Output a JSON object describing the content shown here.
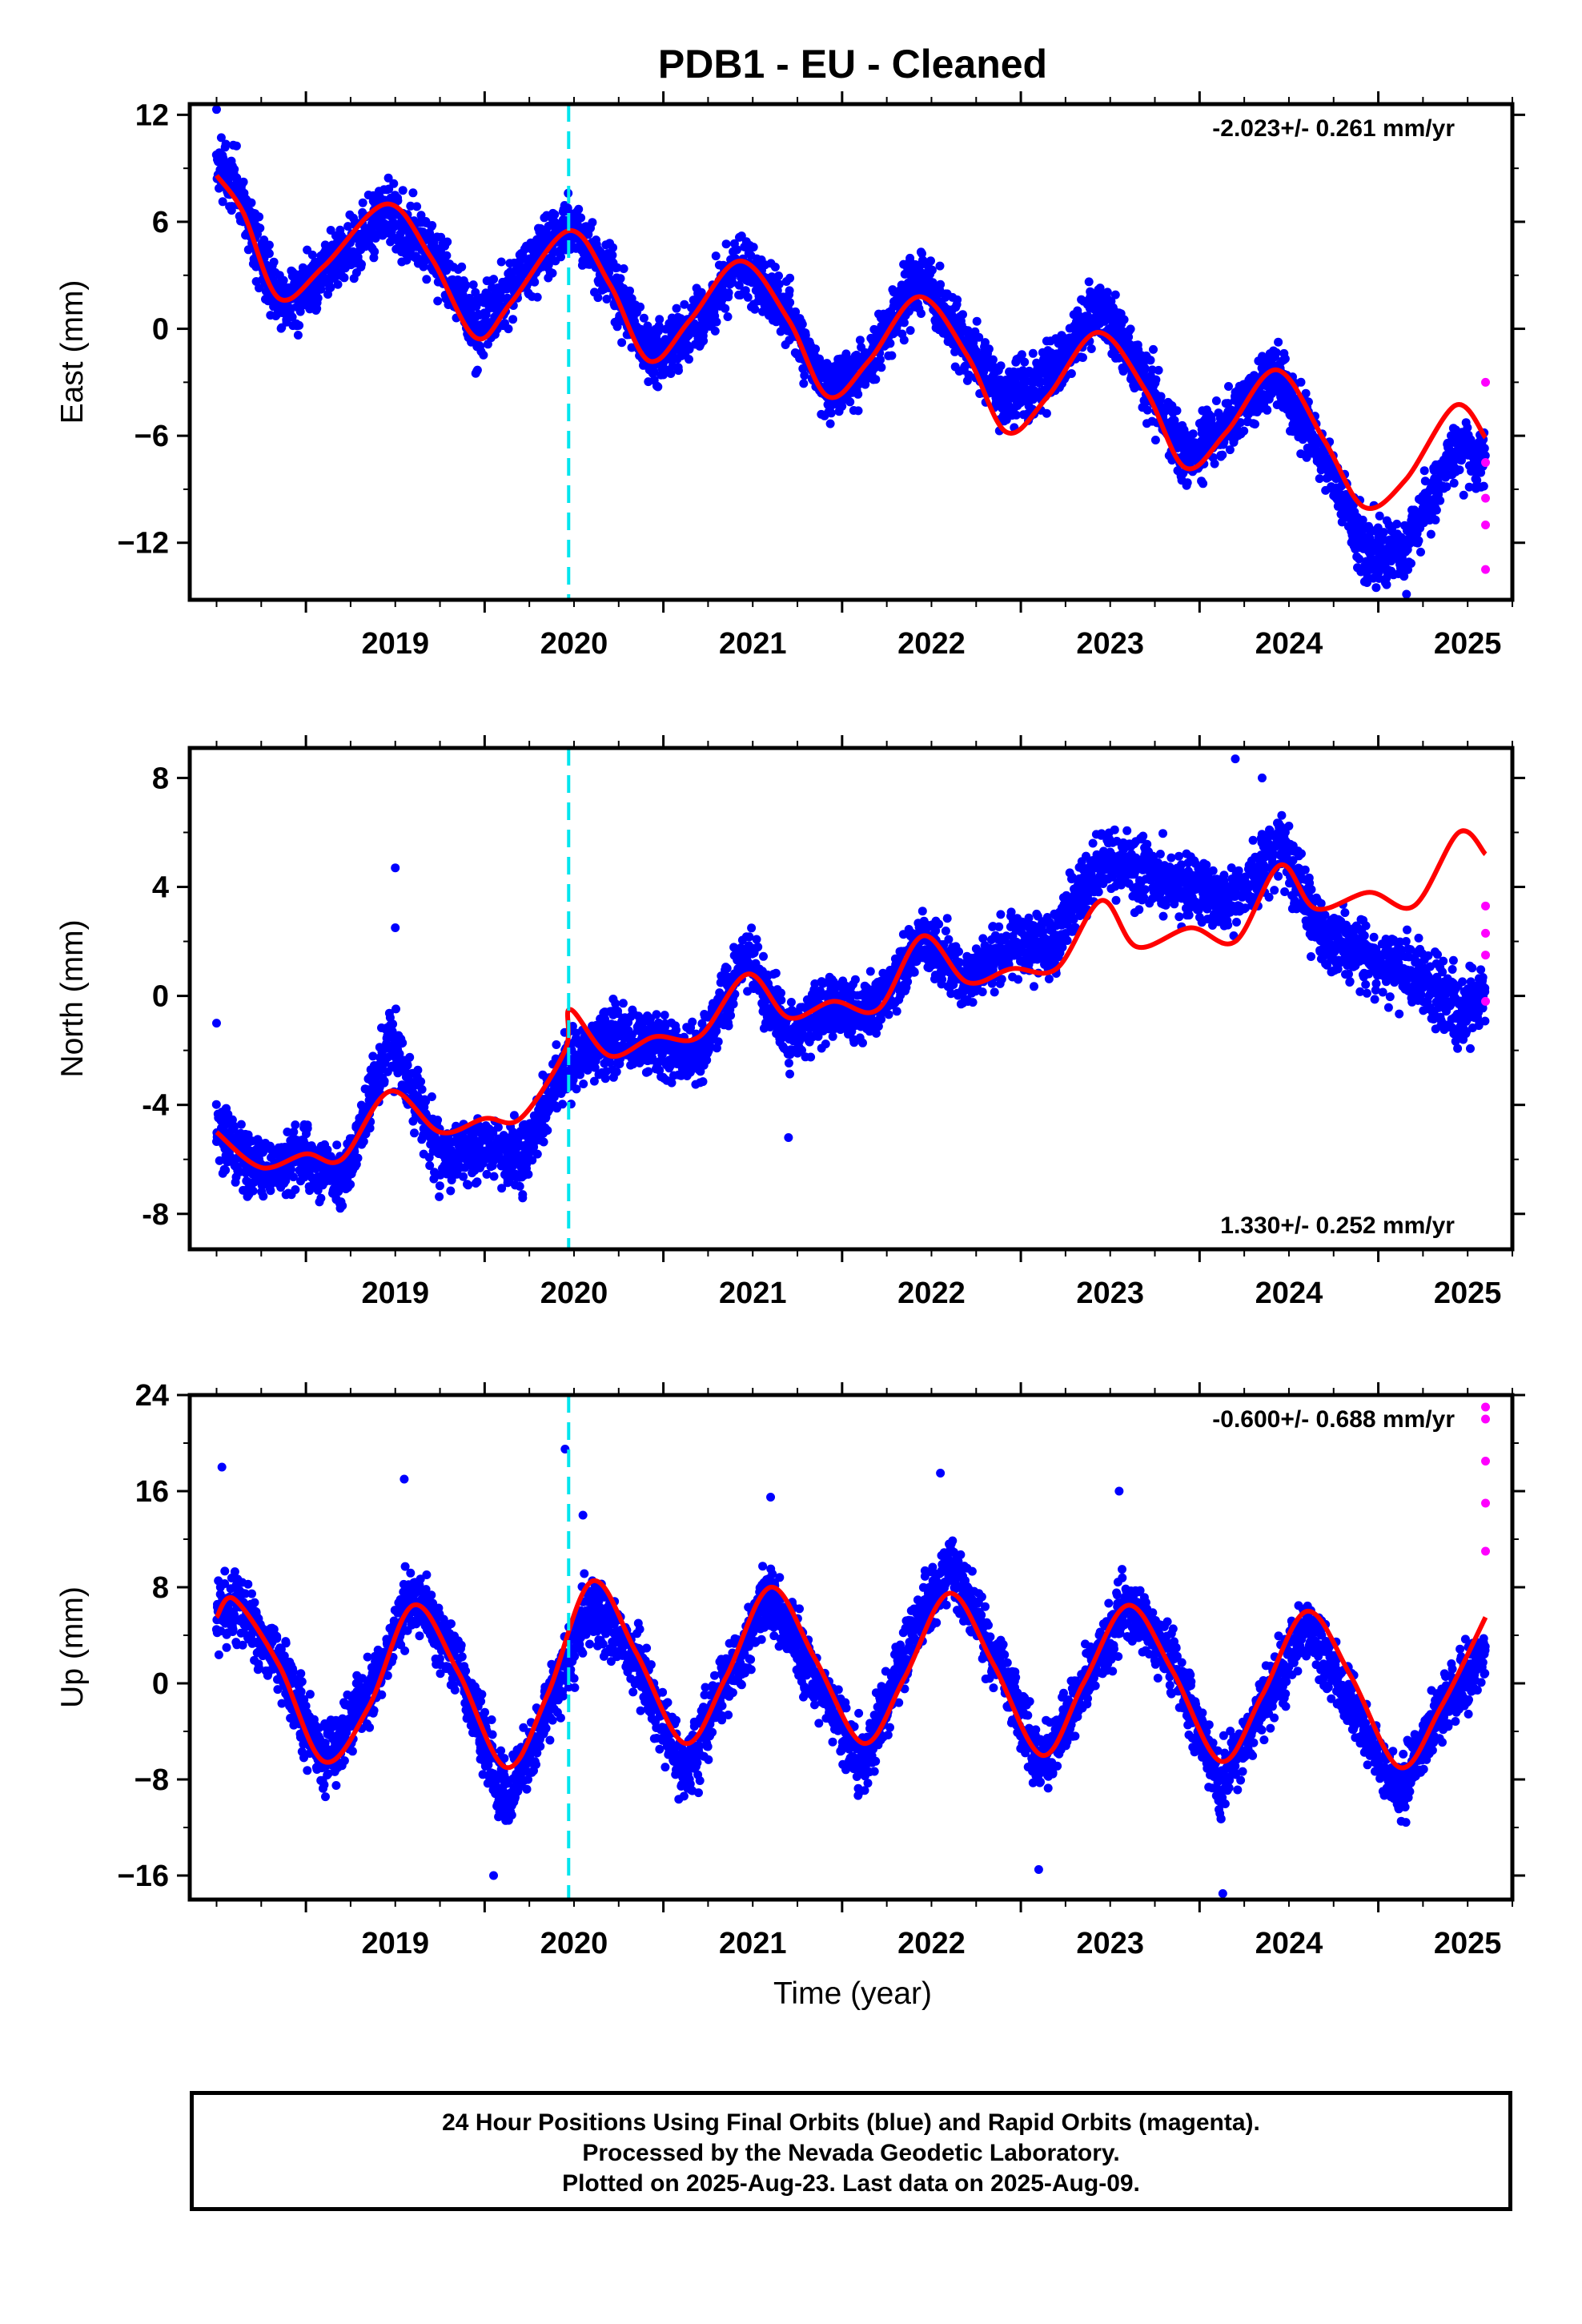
{
  "title": "PDB1  - EU - Cleaned",
  "x_axis_label": "Time (year)",
  "footer": {
    "line1": "24 Hour Positions Using Final Orbits (blue) and Rapid Orbits (magenta).",
    "line2": "Processed by the Nevada Geodetic Laboratory.",
    "line3": "Plotted on 2025-Aug-23. Last data on 2025-Aug-09."
  },
  "colors": {
    "final_orbits": "#0000ff",
    "rapid_orbits": "#ff00ff",
    "model_fit": "#ff0000",
    "event_line": "#00e5ee",
    "frame": "#000000"
  },
  "chart_data": [
    {
      "type": "scatter",
      "panel": "east",
      "ylabel": "East (mm)",
      "rate_text": "-2.023+/- 0.261 mm/yr",
      "rate_position": "top-right",
      "xlim": [
        2018.35,
        2025.75
      ],
      "ylim": [
        -15.2,
        12.6
      ],
      "yticks": [
        12,
        6,
        0,
        -6,
        -12
      ],
      "ytick_labels": [
        "12",
        "6",
        "0",
        "−6",
        "−12"
      ],
      "xticks": [
        2019,
        2020,
        2021,
        2022,
        2023,
        2024,
        2025
      ],
      "xtick_labels": [
        "2019",
        "2020",
        "2021",
        "2022",
        "2023",
        "2024",
        "2025"
      ],
      "event_line_x": 2020.47,
      "series": [
        {
          "kind": "fit",
          "x": [
            2018.5,
            2018.65,
            2018.85,
            2019.1,
            2019.45,
            2019.7,
            2019.95,
            2020.15,
            2020.47,
            2020.7,
            2020.92,
            2021.15,
            2021.43,
            2021.7,
            2021.92,
            2022.15,
            2022.43,
            2022.7,
            2022.92,
            2023.15,
            2023.43,
            2023.7,
            2023.92,
            2024.15,
            2024.43,
            2024.7,
            2024.92,
            2025.15,
            2025.43,
            2025.6
          ],
          "y": [
            8.6,
            6.5,
            1.7,
            3.5,
            7.0,
            4.0,
            -0.5,
            1.5,
            5.5,
            2.5,
            -1.8,
            0.5,
            3.8,
            0.5,
            -3.8,
            -1.8,
            1.8,
            -1.5,
            -5.8,
            -3.8,
            -0.2,
            -3.5,
            -7.8,
            -5.8,
            -2.3,
            -6.3,
            -10.0,
            -8.5,
            -4.3,
            -6.1
          ]
        },
        {
          "kind": "final_orbit_envelope",
          "x": [
            2018.5,
            2018.65,
            2018.85,
            2019.1,
            2019.45,
            2019.7,
            2019.95,
            2020.15,
            2020.47,
            2020.7,
            2020.92,
            2021.15,
            2021.43,
            2021.7,
            2021.92,
            2022.15,
            2022.43,
            2022.7,
            2022.92,
            2023.15,
            2023.43,
            2023.7,
            2023.92,
            2024.15,
            2024.43,
            2024.7,
            2024.92,
            2025.15,
            2025.43,
            2025.6
          ],
          "y": [
            9.5,
            6.8,
            1.2,
            3.2,
            6.5,
            4.5,
            0.0,
            2.5,
            6.0,
            3.0,
            -1.6,
            0.0,
            3.6,
            0.8,
            -3.5,
            -2.0,
            3.0,
            -1.0,
            -4.2,
            -2.8,
            1.3,
            -3.0,
            -7.3,
            -5.4,
            -2.6,
            -7.2,
            -12.5,
            -12.5,
            -6.8,
            -7.2
          ]
        },
        {
          "kind": "outliers",
          "x": [
            2018.5,
            2019.35,
            2019.95,
            2025.6,
            2025.6,
            2025.6,
            2025.6,
            2025.6
          ],
          "y": [
            12.3,
            7.5,
            -2.5,
            -3.0,
            -7.5,
            -9.5,
            -11.0,
            -13.5
          ]
        }
      ]
    },
    {
      "type": "scatter",
      "panel": "north",
      "ylabel": "North (mm)",
      "rate_text": "1.330+/- 0.252 mm/yr",
      "rate_position": "bottom-right",
      "xlim": [
        2018.35,
        2025.75
      ],
      "ylim": [
        -9.3,
        9.1
      ],
      "yticks": [
        8,
        4,
        0,
        -4,
        -8
      ],
      "ytick_labels": [
        "8",
        "4",
        "0",
        "-4",
        "-8"
      ],
      "xticks": [
        2019,
        2020,
        2021,
        2022,
        2023,
        2024,
        2025
      ],
      "xtick_labels": [
        "2019",
        "2020",
        "2021",
        "2022",
        "2023",
        "2024",
        "2025"
      ],
      "event_line_x": 2020.47,
      "series": [
        {
          "kind": "fit",
          "x": [
            2018.5,
            2018.75,
            2019.0,
            2019.2,
            2019.47,
            2019.75,
            2020.0,
            2020.2,
            2020.45,
            2020.48,
            2020.7,
            2020.95,
            2021.2,
            2021.47,
            2021.7,
            2021.95,
            2022.2,
            2022.45,
            2022.7,
            2022.95,
            2023.2,
            2023.45,
            2023.65,
            2023.95,
            2024.2,
            2024.45,
            2024.65,
            2024.95,
            2025.2,
            2025.45,
            2025.6
          ],
          "y": [
            -5.0,
            -6.3,
            -5.8,
            -6.0,
            -3.5,
            -5.0,
            -4.5,
            -4.5,
            -2.0,
            -0.5,
            -2.2,
            -1.5,
            -1.5,
            0.8,
            -0.8,
            -0.2,
            -0.5,
            2.2,
            0.5,
            1.0,
            1.0,
            3.5,
            1.8,
            2.5,
            2.0,
            4.8,
            3.2,
            3.8,
            3.3,
            6.0,
            5.2
          ]
        },
        {
          "kind": "final_orbit_envelope",
          "x": [
            2018.5,
            2018.75,
            2019.0,
            2019.2,
            2019.47,
            2019.75,
            2020.0,
            2020.2,
            2020.45,
            2020.7,
            2020.95,
            2021.2,
            2021.47,
            2021.7,
            2021.95,
            2022.2,
            2022.45,
            2022.7,
            2022.95,
            2023.2,
            2023.45,
            2023.7,
            2023.95,
            2024.2,
            2024.45,
            2024.7,
            2024.95,
            2025.2,
            2025.45,
            2025.6
          ],
          "y": [
            -4.8,
            -6.5,
            -5.8,
            -7.0,
            -1.5,
            -6.0,
            -5.5,
            -6.0,
            -2.5,
            -1.5,
            -1.8,
            -2.2,
            1.5,
            -1.5,
            -0.3,
            -0.5,
            2.0,
            0.5,
            2.0,
            2.0,
            5.0,
            4.5,
            4.0,
            3.5,
            5.5,
            2.0,
            1.5,
            0.8,
            -0.5,
            0.0
          ]
        },
        {
          "kind": "outliers",
          "x": [
            2018.5,
            2019.5,
            2019.5,
            2021.7,
            2024.2,
            2024.35,
            2025.6,
            2025.6,
            2025.6,
            2025.6
          ],
          "y": [
            -1.0,
            4.7,
            2.5,
            -5.2,
            8.7,
            8.0,
            3.3,
            2.3,
            1.5,
            -0.2
          ]
        }
      ]
    },
    {
      "type": "scatter",
      "panel": "up",
      "ylabel": "Up (mm)",
      "rate_text": "-0.600+/- 0.688 mm/yr",
      "rate_position": "top-right",
      "xlim": [
        2018.35,
        2025.75
      ],
      "ylim": [
        -18.0,
        24.0
      ],
      "yticks": [
        24,
        16,
        8,
        0,
        -8,
        -16
      ],
      "ytick_labels": [
        "24",
        "16",
        "8",
        "0",
        "−8",
        "−16"
      ],
      "xticks": [
        2019,
        2020,
        2021,
        2022,
        2023,
        2024,
        2025
      ],
      "xtick_labels": [
        "2019",
        "2020",
        "2021",
        "2022",
        "2023",
        "2024",
        "2025"
      ],
      "event_line_x": 2020.47,
      "series": [
        {
          "kind": "fit",
          "x": [
            2018.5,
            2018.6,
            2018.85,
            2019.1,
            2019.35,
            2019.6,
            2019.85,
            2020.12,
            2020.35,
            2020.6,
            2020.85,
            2021.12,
            2021.35,
            2021.6,
            2021.85,
            2022.12,
            2022.35,
            2022.6,
            2022.85,
            2023.12,
            2023.35,
            2023.6,
            2023.85,
            2024.12,
            2024.35,
            2024.6,
            2024.85,
            2025.12,
            2025.35,
            2025.6
          ],
          "y": [
            5.5,
            7.0,
            1.5,
            -6.5,
            -2.0,
            6.5,
            1.0,
            -7.0,
            -1.0,
            8.5,
            2.5,
            -5.0,
            0.5,
            8.0,
            2.0,
            -5.0,
            0.5,
            7.5,
            1.5,
            -6.0,
            0.0,
            6.5,
            1.0,
            -6.5,
            -1.0,
            6.0,
            0.5,
            -7.0,
            -2.0,
            5.5
          ]
        },
        {
          "kind": "final_orbit_envelope",
          "x": [
            2018.5,
            2018.6,
            2018.85,
            2019.1,
            2019.35,
            2019.6,
            2019.85,
            2020.12,
            2020.35,
            2020.6,
            2020.85,
            2021.12,
            2021.35,
            2021.6,
            2021.85,
            2022.12,
            2022.35,
            2022.6,
            2022.85,
            2023.12,
            2023.35,
            2023.6,
            2023.85,
            2024.12,
            2024.35,
            2024.6,
            2024.85,
            2025.12,
            2025.35,
            2025.6
          ],
          "y": [
            5.0,
            7.0,
            1.5,
            -6.5,
            -1.0,
            7.5,
            1.5,
            -10.0,
            -2.0,
            6.5,
            2.0,
            -8.0,
            0.5,
            7.0,
            0.5,
            -7.0,
            2.5,
            10.0,
            2.5,
            -7.0,
            0.0,
            7.0,
            2.0,
            -8.5,
            -2.0,
            5.0,
            -2.0,
            -9.0,
            -2.0,
            2.5
          ]
        },
        {
          "kind": "outliers",
          "x": [
            2018.53,
            2019.55,
            2020.05,
            2020.45,
            2020.55,
            2021.6,
            2022.55,
            2023.1,
            2023.55,
            2024.13,
            2025.6,
            2025.6,
            2025.6,
            2025.6,
            2025.6
          ],
          "y": [
            18.0,
            17.0,
            -16.0,
            19.5,
            14.0,
            15.5,
            17.5,
            -15.5,
            16.0,
            -17.5,
            23.0,
            22.0,
            18.5,
            15.0,
            11.0
          ]
        }
      ]
    }
  ]
}
